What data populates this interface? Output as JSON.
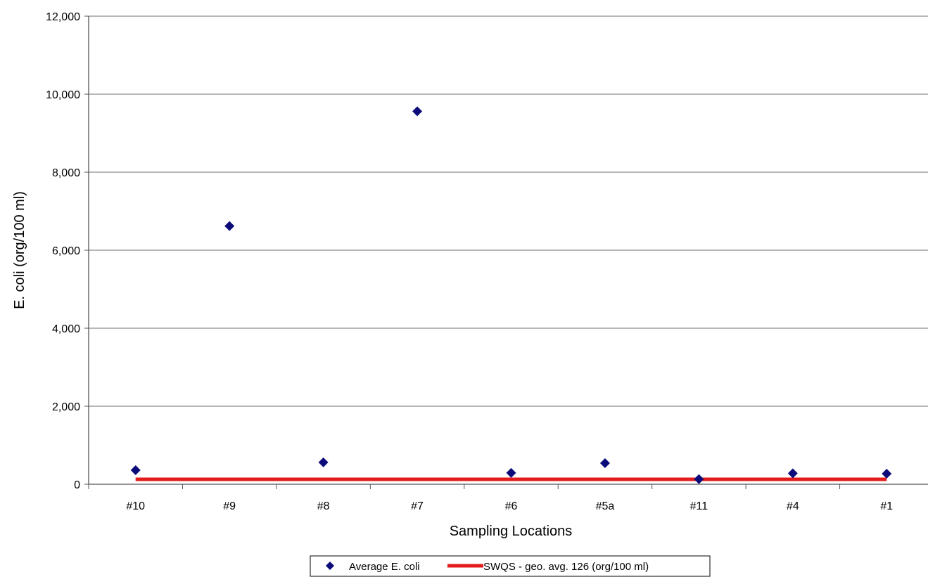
{
  "colors": {
    "marker": "#0b0b7a",
    "threshold": "#e31b1b",
    "grid": "#8c8c8c",
    "axis": "#555555"
  },
  "legend": {
    "position": "bottom-center",
    "items": [
      {
        "label": "Average E. coli",
        "icon": "diamond-marker-icon"
      },
      {
        "label": "SWQS - geo. avg. 126 (org/100 ml)",
        "icon": "red-line-icon"
      }
    ]
  },
  "chart_data": {
    "type": "scatter",
    "title": "",
    "xlabel": "Sampling Locations",
    "ylabel": "E. coli (org/100 ml)",
    "ylim": [
      0,
      12000
    ],
    "y_ticks": [
      0,
      2000,
      4000,
      6000,
      8000,
      10000,
      12000
    ],
    "y_tick_labels": [
      "0",
      "2,000",
      "4,000",
      "6,000",
      "8,000",
      "10,000",
      "12,000"
    ],
    "grid": true,
    "categories": [
      "#10",
      "#9",
      "#8",
      "#7",
      "#6",
      "#5a",
      "#11",
      "#4",
      "#1"
    ],
    "series": [
      {
        "name": "Average E. coli",
        "type": "scatter",
        "values": [
          360,
          6620,
          560,
          9560,
          290,
          540,
          130,
          280,
          270
        ]
      },
      {
        "name": "SWQS - geo. avg. 126 (org/100 ml)",
        "type": "line",
        "values": [
          126,
          126,
          126,
          126,
          126,
          126,
          126,
          126,
          126
        ]
      }
    ]
  }
}
